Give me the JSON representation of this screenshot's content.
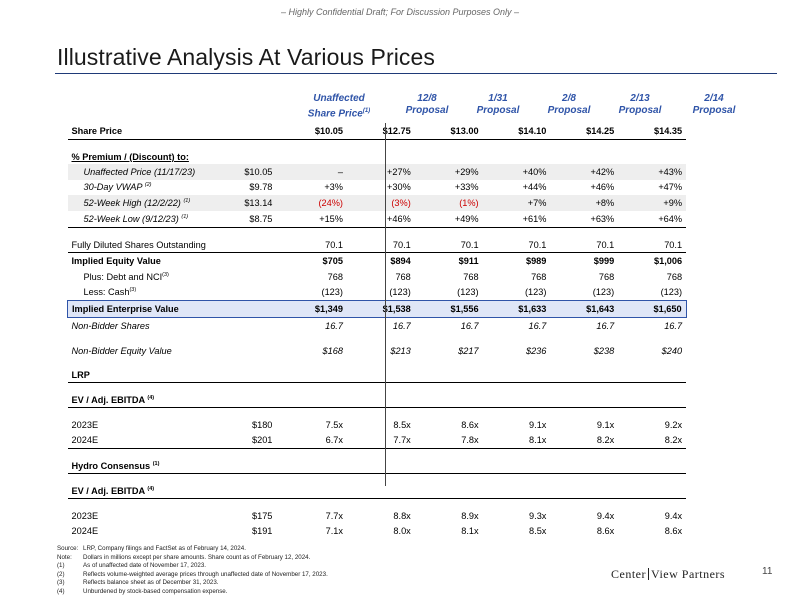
{
  "banner": "– Highly Confidential Draft; For Discussion Purposes Only –",
  "title": "Illustrative Analysis At Various Prices",
  "columns": [
    {
      "line1": "Unaffected",
      "line2": "Share Price",
      "sup": "(1)"
    },
    {
      "line1": "12/8",
      "line2": "Proposal",
      "sup": ""
    },
    {
      "line1": "1/31",
      "line2": "Proposal",
      "sup": ""
    },
    {
      "line1": "2/8",
      "line2": "Proposal",
      "sup": ""
    },
    {
      "line1": "2/13",
      "line2": "Proposal",
      "sup": ""
    },
    {
      "line1": "2/14",
      "line2": "Proposal",
      "sup": ""
    }
  ],
  "rows": {
    "share_price": {
      "label": "Share Price",
      "vals": [
        "$10.05",
        "$12.75",
        "$13.00",
        "$14.10",
        "$14.25",
        "$14.35"
      ]
    },
    "premium_header": {
      "label": "% Premium / (Discount) to:"
    },
    "unaffected": {
      "label": "Unaffected Price (11/17/23)",
      "ref": "$10.05",
      "vals": [
        "–",
        "+27%",
        "+29%",
        "+40%",
        "+42%",
        "+43%"
      ]
    },
    "vwap": {
      "label": "30-Day VWAP",
      "sup": "(2)",
      "ref": "$9.78",
      "vals": [
        "+3%",
        "+30%",
        "+33%",
        "+44%",
        "+46%",
        "+47%"
      ]
    },
    "high52": {
      "label": "52-Week High (12/2/22)",
      "sup": "(1)",
      "ref": "$13.14",
      "vals": [
        "(24%)",
        "(3%)",
        "(1%)",
        "+7%",
        "+8%",
        "+9%"
      ]
    },
    "low52": {
      "label": "52-Week Low (9/12/23)",
      "sup": "(1)",
      "ref": "$8.75",
      "vals": [
        "+15%",
        "+46%",
        "+49%",
        "+61%",
        "+63%",
        "+64%"
      ]
    },
    "fdso": {
      "label": "Fully Diluted Shares Outstanding",
      "vals": [
        "70.1",
        "70.1",
        "70.1",
        "70.1",
        "70.1",
        "70.1"
      ]
    },
    "equity": {
      "label": "Implied Equity Value",
      "vals": [
        "$705",
        "$894",
        "$911",
        "$989",
        "$999",
        "$1,006"
      ]
    },
    "debt": {
      "label": "Plus: Debt and NCI",
      "sup": "(3)",
      "vals": [
        "768",
        "768",
        "768",
        "768",
        "768",
        "768"
      ]
    },
    "cash": {
      "label": "Less: Cash",
      "sup": "(3)",
      "vals": [
        "(123)",
        "(123)",
        "(123)",
        "(123)",
        "(123)",
        "(123)"
      ]
    },
    "ev": {
      "label": "Implied Enterprise Value",
      "vals": [
        "$1,349",
        "$1,538",
        "$1,556",
        "$1,633",
        "$1,643",
        "$1,650"
      ]
    },
    "nonbidder_shares": {
      "label": "Non-Bidder Shares",
      "vals": [
        "16.7",
        "16.7",
        "16.7",
        "16.7",
        "16.7",
        "16.7"
      ]
    },
    "nonbidder_equity": {
      "label": "Non-Bidder Equity Value",
      "vals": [
        "$168",
        "$213",
        "$217",
        "$236",
        "$238",
        "$240"
      ]
    },
    "lrp": {
      "label": "LRP"
    },
    "lrp_ev": {
      "label": "EV / Adj. EBITDA",
      "sup": "(4)"
    },
    "lrp_2023": {
      "label": "2023E",
      "ref": "$180",
      "vals": [
        "7.5x",
        "8.5x",
        "8.6x",
        "9.1x",
        "9.1x",
        "9.2x"
      ]
    },
    "lrp_2024": {
      "label": "2024E",
      "ref": "$201",
      "vals": [
        "6.7x",
        "7.7x",
        "7.8x",
        "8.1x",
        "8.2x",
        "8.2x"
      ]
    },
    "hydro": {
      "label": "Hydro Consensus",
      "sup": "(1)"
    },
    "hydro_ev": {
      "label": "EV / Adj. EBITDA",
      "sup": "(4)"
    },
    "hydro_2023": {
      "label": "2023E",
      "ref": "$175",
      "vals": [
        "7.7x",
        "8.8x",
        "8.9x",
        "9.3x",
        "9.4x",
        "9.4x"
      ]
    },
    "hydro_2024": {
      "label": "2024E",
      "ref": "$191",
      "vals": [
        "7.1x",
        "8.0x",
        "8.1x",
        "8.5x",
        "8.6x",
        "8.6x"
      ]
    }
  },
  "notes": [
    {
      "label": "Source:",
      "text": "LRP, Company filings and FactSet as of February 14, 2024."
    },
    {
      "label": "Note:",
      "text": "Dollars in millions except per share amounts. Share count as of February 12, 2024."
    },
    {
      "label": "(1)",
      "text": "As of unaffected date of November 17, 2023."
    },
    {
      "label": "(2)",
      "text": "Reflects volume-weighted average prices through unaffected date of November 17, 2023."
    },
    {
      "label": "(3)",
      "text": "Reflects balance sheet as of December 31, 2023."
    },
    {
      "label": "(4)",
      "text": "Unburdened by stock-based compensation expense."
    }
  ],
  "footer": {
    "logo_left": "Center",
    "logo_right": "View Partners",
    "page": "11"
  }
}
